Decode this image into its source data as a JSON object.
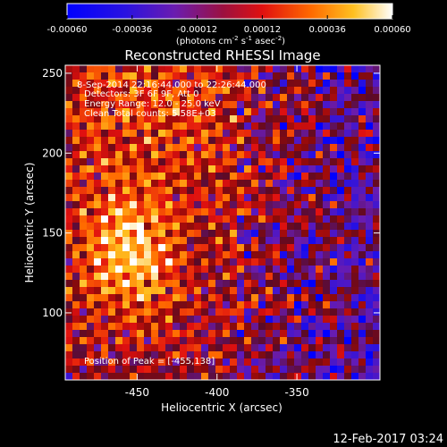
{
  "chart_data": {
    "type": "heatmap",
    "title": "Reconstructed RHESSI Image",
    "xlabel": "Heliocentric X (arcsec)",
    "ylabel": "Heliocentric Y (arcsec)",
    "xlim": [
      -495,
      -298
    ],
    "ylim": [
      58,
      255
    ],
    "x_ticks": [
      -450,
      -400,
      -350
    ],
    "y_ticks": [
      100,
      150,
      200,
      250
    ],
    "colorbar": {
      "min": -0.0006,
      "max": 0.0006,
      "ticks": [
        "-0.00060",
        "-0.00036",
        "-0.00012",
        "0.00012",
        "0.00036",
        "0.00060"
      ],
      "tick_values": [
        -0.0006,
        -0.00036,
        -0.00012,
        0.00012,
        0.00036,
        0.0006
      ],
      "unit_label": "(photons cm",
      "unit_sup1": "-2",
      "unit_mid": " s",
      "unit_sup2": "-1",
      "unit_mid2": " asec",
      "unit_sup3": "-2",
      "unit_end": ")"
    },
    "annotations": [
      "8-Sep-2014 22:16:44.000 to 22:26:44.000",
      "Detectors: 3F 6F 9F, Att 0",
      "Energy Range: 12.0 - 25.0 keV",
      "Clean    Total counts: 5.58E+03"
    ],
    "peak_label": "Position of Peak = [-455,138]",
    "peak": [
      -455,
      138
    ],
    "grid": false
  },
  "footer": {
    "timestamp": "12-Feb-2017 03:24"
  }
}
